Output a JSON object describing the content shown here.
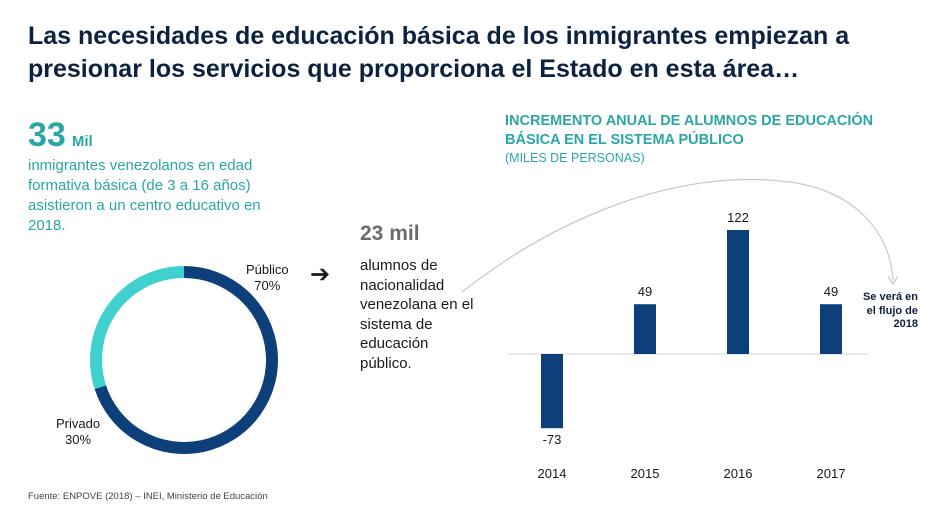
{
  "title": "Las necesidades de educación básica de los inmigrantes empiezan a presionar los servicios que proporciona el Estado en esta área…",
  "left_panel": {
    "number": "33",
    "unit": "Mil",
    "description": "inmigrantes venezolanos en edad formativa básica (de 3 a 16 años) asistieron a un centro educativo en 2018."
  },
  "donut": {
    "segments": [
      {
        "name": "Público",
        "value_label": "70%",
        "value": 70,
        "color": "#0d3f7a"
      },
      {
        "name": "Privado",
        "value_label": "30%",
        "value": 30,
        "color": "#3fd0cf"
      }
    ]
  },
  "arrow_icon": "arrow-right-icon",
  "middle": {
    "number": "23 mil",
    "description": "alumnos de nacionalidad venezolana en el sistema de educación público."
  },
  "chart_note": "Se verá en el flujo de 2018",
  "source": "Fuente: ENPOVE (2018) – INEI, Ministerio de Educación",
  "colors": {
    "navy": "#0d3f7a",
    "teal": "#2ba6a6",
    "aqua": "#3fd0cf"
  },
  "chart_data": [
    {
      "type": "bar",
      "title": "INCREMENTO ANUAL DE ALUMNOS DE EDUCACIÓN BÁSICA EN EL SISTEMA PÚBLICO",
      "subtitle": "(MILES DE PERSONAS)",
      "categories": [
        "2014",
        "2015",
        "2016",
        "2017"
      ],
      "values": [
        -73,
        49,
        122,
        49
      ],
      "data_labels": [
        "-73",
        "49",
        "122",
        "49"
      ],
      "xlabel": "",
      "ylabel": "",
      "ylim": [
        -90,
        140
      ],
      "grid": false
    },
    {
      "type": "pie",
      "categories": [
        "Público",
        "Privado"
      ],
      "values": [
        70,
        30
      ]
    }
  ]
}
